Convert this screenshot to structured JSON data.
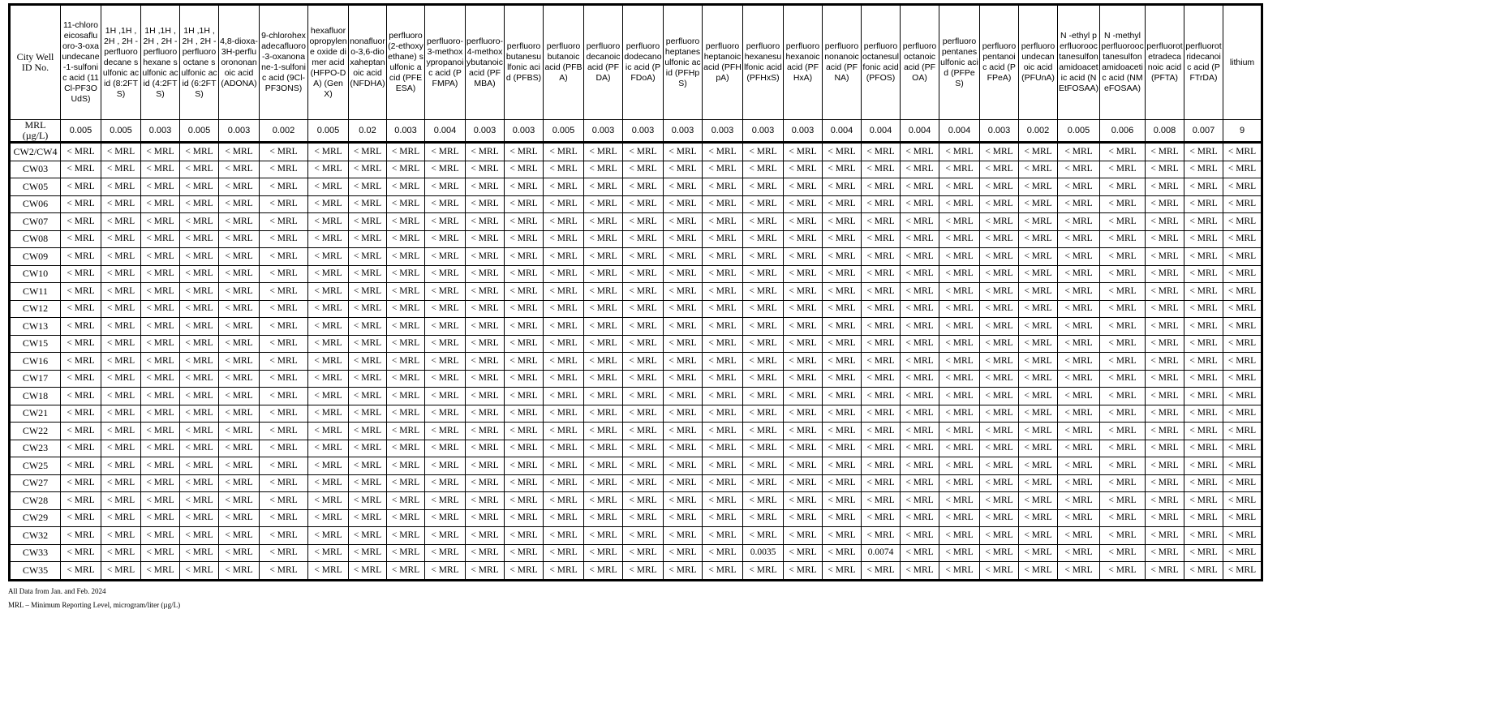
{
  "table": {
    "id_header": "City Well ID No.",
    "mrl_label": "MRL (µg/L)",
    "columns": [
      {
        "name": "11-chloroeicosafluoro-3-oxaundecane-1-sulfonic acid (11Cl-PF3OUdS)",
        "mrl": "0.005"
      },
      {
        "name": "1H ,1H , 2H , 2H -perfluorodecane sulfonic acid (8:2FTS)",
        "mrl": "0.005"
      },
      {
        "name": "1H ,1H , 2H , 2H -perfluorohexane sulfonic acid (4:2FTS)",
        "mrl": "0.003"
      },
      {
        "name": "1H ,1H , 2H , 2H -perfluorooctane sulfonic acid (6:2FTS)",
        "mrl": "0.005"
      },
      {
        "name": "4,8-dioxa-3H-perfluorononanoic acid (ADONA)",
        "mrl": "0.003"
      },
      {
        "name": "9-chlorohexadecafluoro-3-oxanonane-1-sulfonic acid (9Cl-PF3ONS)",
        "mrl": "0.002"
      },
      {
        "name": "hexafluoropropylene oxide dimer acid (HFPO-DA) (GenX)",
        "mrl": "0.005"
      },
      {
        "name": "nonafluoro-3,6-dioxaheptanoic acid (NFDHA)",
        "mrl": "0.02"
      },
      {
        "name": "perfluoro (2-ethoxyethane) sulfonic acid (PFEESA)",
        "mrl": "0.003"
      },
      {
        "name": "perfluoro-3-methoxypropanoic acid (PFMPA)",
        "mrl": "0.004"
      },
      {
        "name": "perfluoro-4-methoxybutanoic acid (PFMBA)",
        "mrl": "0.003"
      },
      {
        "name": "perfluorobutanesulfonic acid (PFBS)",
        "mrl": "0.003"
      },
      {
        "name": "perfluorobutanoic acid (PFBA)",
        "mrl": "0.005"
      },
      {
        "name": "perfluorodecanoic acid (PFDA)",
        "mrl": "0.003"
      },
      {
        "name": "perfluorododecanoic acid (PFDoA)",
        "mrl": "0.003"
      },
      {
        "name": "perfluoroheptanesulfonic acid (PFHpS)",
        "mrl": "0.003"
      },
      {
        "name": "perfluoroheptanoic acid (PFHpA)",
        "mrl": "0.003"
      },
      {
        "name": "perfluorohexanesulfonic acid (PFHxS)",
        "mrl": "0.003"
      },
      {
        "name": "perfluorohexanoic acid (PFHxA)",
        "mrl": "0.003"
      },
      {
        "name": "perfluorononanoic acid (PFNA)",
        "mrl": "0.004"
      },
      {
        "name": "perfluorooctanesulfonic acid (PFOS)",
        "mrl": "0.004"
      },
      {
        "name": "perfluorooctanoic acid (PFOA)",
        "mrl": "0.004"
      },
      {
        "name": "perfluoropentanesulfonic acid (PFPeS)",
        "mrl": "0.004"
      },
      {
        "name": "perfluoropentanoic acid (PFPeA)",
        "mrl": "0.003"
      },
      {
        "name": "perfluoroundecanoic acid (PFUnA)",
        "mrl": "0.002"
      },
      {
        "name": "N -ethyl perfluorooctanesulfonamidoacetic acid (NEtFOSAA)",
        "mrl": "0.005"
      },
      {
        "name": "N -methyl perfluorooctanesulfonamidoacetic acid (NMeFOSAA)",
        "mrl": "0.006"
      },
      {
        "name": "perfluorotetradecanoic acid (PFTA)",
        "mrl": "0.008"
      },
      {
        "name": "perfluorotridecanoic acid (PFTrDA)",
        "mrl": "0.007"
      },
      {
        "name": "lithium",
        "mrl": "9"
      }
    ],
    "default_value": "< MRL",
    "rows": [
      {
        "id": "CW2/CW4",
        "detections": {}
      },
      {
        "id": "CW03",
        "detections": {}
      },
      {
        "id": "CW05",
        "detections": {}
      },
      {
        "id": "CW06",
        "detections": {}
      },
      {
        "id": "CW07",
        "detections": {}
      },
      {
        "id": "CW08",
        "detections": {}
      },
      {
        "id": "CW09",
        "detections": {}
      },
      {
        "id": "CW10",
        "detections": {}
      },
      {
        "id": "CW11",
        "detections": {}
      },
      {
        "id": "CW12",
        "detections": {}
      },
      {
        "id": "CW13",
        "detections": {}
      },
      {
        "id": "CW15",
        "detections": {}
      },
      {
        "id": "CW16",
        "detections": {}
      },
      {
        "id": "CW17",
        "detections": {}
      },
      {
        "id": "CW18",
        "detections": {}
      },
      {
        "id": "CW21",
        "detections": {}
      },
      {
        "id": "CW22",
        "detections": {}
      },
      {
        "id": "CW23",
        "detections": {}
      },
      {
        "id": "CW25",
        "detections": {}
      },
      {
        "id": "CW27",
        "detections": {}
      },
      {
        "id": "CW28",
        "detections": {}
      },
      {
        "id": "CW29",
        "detections": {}
      },
      {
        "id": "CW32",
        "detections": {}
      },
      {
        "id": "CW33",
        "detections": {
          "PFHxS": "0.0035",
          "PFOS": "0.0074"
        }
      },
      {
        "id": "CW35",
        "detections": {}
      }
    ]
  },
  "footnotes": [
    "All Data from Jan. and Feb. 2024",
    "MRL – Minimum Reporting Level, microgram/liter (µg/L)"
  ]
}
